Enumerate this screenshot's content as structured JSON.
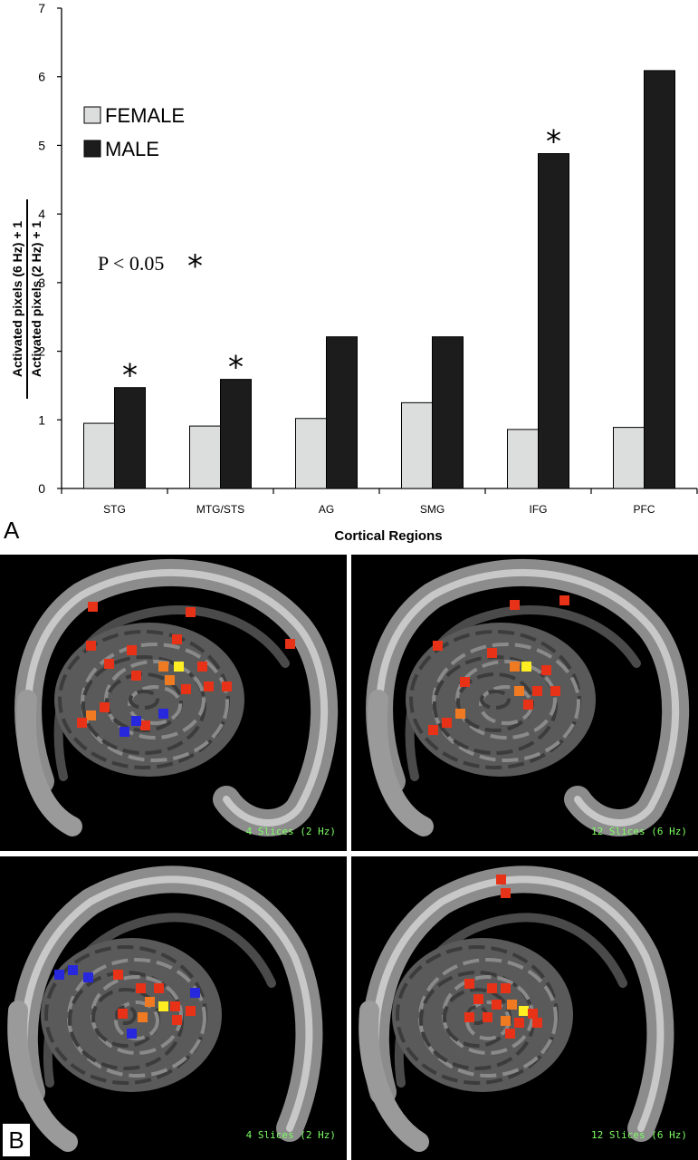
{
  "figure": {
    "panel_a_label": "A",
    "panel_b_label": "B",
    "significance_label": "P < 0.05",
    "significance_star": "*"
  },
  "chart_data": {
    "type": "bar",
    "categories": [
      "STG",
      "MTG/STS",
      "AG",
      "SMG",
      "IFG",
      "PFC"
    ],
    "series": [
      {
        "name": "FEMALE",
        "color": "#dcdedd",
        "values": [
          0.95,
          0.91,
          1.02,
          1.25,
          0.86,
          0.89
        ]
      },
      {
        "name": "MALE",
        "color": "#1c1c1c",
        "values": [
          1.47,
          1.59,
          2.21,
          2.21,
          4.88,
          6.09
        ]
      }
    ],
    "significant": [
      true,
      true,
      false,
      false,
      true,
      false
    ],
    "ylabel_numerator": "Activated pixels (6 Hz) + 1",
    "ylabel_denominator": "Activated pixels (2 Hz) + 1",
    "xlabel": "Cortical Regions",
    "ylim": [
      0,
      7
    ],
    "yticks": [
      0,
      1,
      2,
      3,
      4,
      5,
      6,
      7
    ],
    "grid": false,
    "legend_position": "top-left"
  },
  "mri_panels": [
    {
      "caption": "4 Slices (2 Hz)"
    },
    {
      "caption": "12 Slices (6 Hz)"
    },
    {
      "caption": "4 Slices (2 Hz)"
    },
    {
      "caption": "12 Slices (6 Hz)"
    }
  ],
  "colors": {
    "activation_red": "#e83218",
    "activation_orange": "#f07a22",
    "activation_yellow": "#ffee22",
    "deactivation_blue": "#2727dd",
    "caption_green": "#7cff62"
  }
}
